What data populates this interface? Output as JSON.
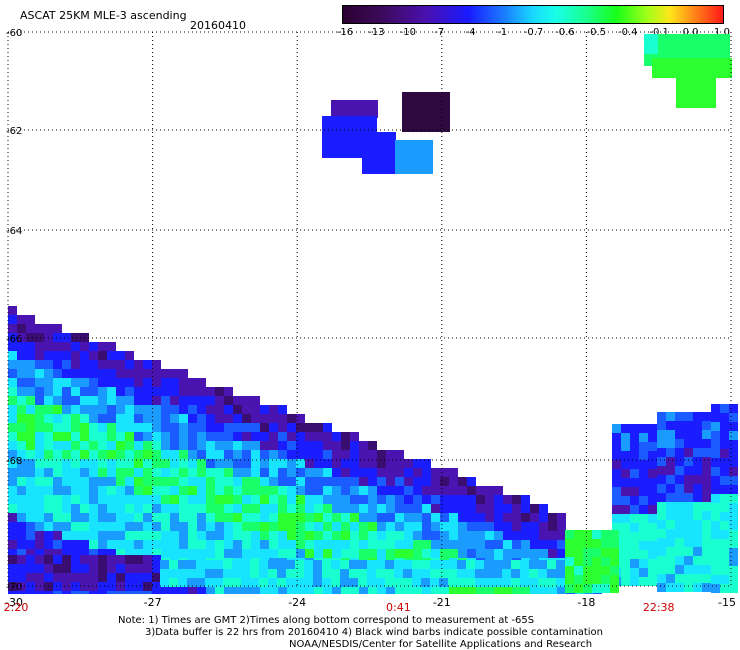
{
  "header": {
    "title": "ASCAT 25KM MLE-3 ascending",
    "date": "20160410"
  },
  "color_scale": {
    "labels": [
      "-16",
      "-13",
      "-10",
      "-7",
      "-4",
      "-1",
      "-0.7",
      "-0.6",
      "-0.5",
      "-0.4",
      "-0.1",
      "0.0",
      "1.0"
    ],
    "colors": [
      "#2a0030",
      "#40107a",
      "#3a1cc8",
      "#1a22ff",
      "#1a7cff",
      "#19d0ff",
      "#19ffd8",
      "#19ff78",
      "#40ff19",
      "#b0ff19",
      "#ffe619",
      "#ff8019",
      "#ff1919"
    ]
  },
  "axes": {
    "lat_ticks": [
      "-60",
      "-62",
      "-64",
      "-66",
      "-68",
      "-70"
    ],
    "lon_ticks": [
      "-30",
      "-27",
      "-24",
      "-21",
      "-18",
      "-15"
    ],
    "time_labels": [
      {
        "text": "2:20",
        "lon": -30
      },
      {
        "text": "0:41",
        "lon": -21.9
      },
      {
        "text": "22:38",
        "lon": -16.5
      }
    ]
  },
  "colors": {
    "grid": "#000000",
    "time_label": "#cc0000"
  },
  "footer": {
    "line1": "Note: 1) Times are GMT 2)Times along bottom correspond to measurement at -65S",
    "line2": "3)Data buffer is 22 hrs from 20160410 4) Black wind barbs indicate possible contamination",
    "line3": "NOAA/NESDIS/Center for Satellite Applications and Research"
  }
}
